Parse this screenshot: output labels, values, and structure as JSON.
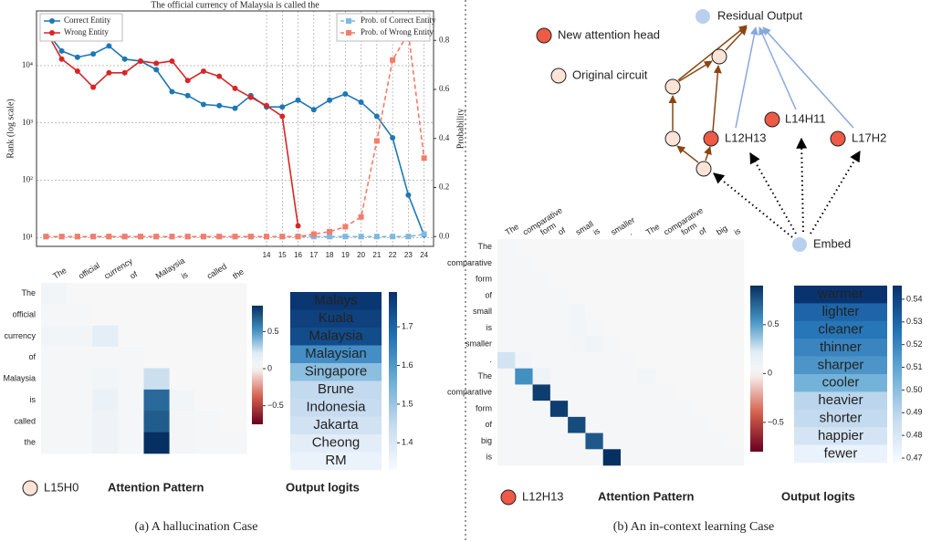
{
  "chart_data": [
    {
      "type": "line",
      "title": "The official currency of Malaysia is called the",
      "ylabel": "Rank (log scale)",
      "y2label": "Probability",
      "x": [
        0,
        1,
        2,
        3,
        4,
        5,
        6,
        7,
        8,
        9,
        10,
        11,
        12,
        13,
        14,
        15,
        16,
        17,
        18,
        19,
        20,
        21,
        22,
        23,
        24
      ],
      "xlim": [
        -0.6,
        24.6
      ],
      "xticks": [
        14,
        15,
        16,
        17,
        18,
        19,
        20,
        21,
        22,
        23,
        24
      ],
      "yscale": "log",
      "ylim": [
        7,
        90000
      ],
      "yticks": [
        {
          "value": 10,
          "label": "10¹"
        },
        {
          "value": 100,
          "label": "10²"
        },
        {
          "value": 1000,
          "label": "10³"
        },
        {
          "value": 10000,
          "label": "10⁴"
        }
      ],
      "y2lim": [
        -0.04,
        0.92
      ],
      "y2ticks": [
        {
          "value": 0,
          "label": "0.0"
        },
        {
          "value": 0.2,
          "label": "0.2"
        },
        {
          "value": 0.4,
          "label": "0.4"
        },
        {
          "value": 0.6,
          "label": "0.6"
        },
        {
          "value": 0.8,
          "label": "0.8"
        }
      ],
      "grid": true,
      "legend": "upper left",
      "legend2": "upper right",
      "series": [
        {
          "name": "Correct Entity",
          "color": "#1f77b4",
          "marker": "circle",
          "linestyle": "solid",
          "values": [
            40000,
            18000,
            14000,
            16000,
            22000,
            13000,
            12000,
            8500,
            3500,
            3000,
            2100,
            2000,
            1800,
            3000,
            1900,
            1900,
            2500,
            1700,
            2500,
            3200,
            2300,
            1300,
            550,
            55,
            11
          ]
        },
        {
          "name": "Wrong Entity",
          "color": "#d62728",
          "marker": "circle",
          "linestyle": "solid",
          "values": [
            40000,
            13000,
            8000,
            4200,
            7500,
            7500,
            12000,
            11000,
            12000,
            5500,
            8000,
            6500,
            4000,
            2800,
            2000,
            1300,
            16,
            null,
            null,
            null,
            null,
            null,
            null,
            null,
            null
          ]
        },
        {
          "name": "Prob. of Correct Entity",
          "color": "#7fb8e0",
          "marker": "square",
          "linestyle": "dashed",
          "axis": "y2",
          "values": [
            0,
            0,
            0,
            0,
            0,
            0,
            0,
            0,
            0,
            0,
            0,
            0,
            0,
            0,
            0,
            0,
            0,
            0,
            0,
            0,
            0,
            0,
            0,
            0,
            0.01
          ]
        },
        {
          "name": "Prob. of Wrong Entity",
          "color": "#f47c6a",
          "marker": "square",
          "linestyle": "dashed",
          "axis": "y2",
          "values": [
            0,
            0,
            0,
            0,
            0,
            0,
            0,
            0,
            0,
            0,
            0,
            0,
            0,
            0,
            0,
            0,
            0,
            0.01,
            0.02,
            0.04,
            0.08,
            0.39,
            0.72,
            0.83,
            0.32
          ]
        }
      ]
    },
    {
      "type": "heatmap",
      "colormap": "RdBu",
      "xlabels": [
        "The",
        "official",
        "currency",
        "of",
        "Malaysia",
        "is",
        "called",
        "the"
      ],
      "ylabels": [
        "The",
        "official",
        "currency",
        "of",
        "Malaysia",
        "is",
        "called",
        "the"
      ],
      "clim": [
        -0.75,
        0.85
      ],
      "cticks": [
        0.5,
        0,
        {
          "value": -0.5,
          "label": "−0.5"
        }
      ],
      "values": [
        [
          0.05,
          0,
          0,
          0,
          0,
          0,
          0,
          0
        ],
        [
          0.03,
          0.02,
          0,
          0,
          0,
          0,
          0,
          0
        ],
        [
          0.05,
          0.05,
          0.2,
          0,
          0,
          0,
          0,
          0
        ],
        [
          0.02,
          0.02,
          0.03,
          0.02,
          0,
          0,
          0,
          0
        ],
        [
          0.02,
          0.02,
          0.05,
          0.03,
          0.25,
          0,
          0,
          0
        ],
        [
          0.03,
          0.03,
          0.12,
          0.03,
          0.65,
          0.05,
          0,
          0
        ],
        [
          0.03,
          0.03,
          0.08,
          0.02,
          0.7,
          0.04,
          0.03,
          0
        ],
        [
          0.03,
          0.03,
          0.08,
          0.03,
          0.85,
          0.04,
          0.03,
          0.03
        ]
      ]
    },
    {
      "type": "colortable",
      "colormap": "Blues",
      "categories": [
        "Malays",
        "Kuala",
        "Malaysia",
        "Malaysian",
        "Singapore",
        "Brune",
        "Indonesia",
        "Jakarta",
        "Cheong",
        "RM"
      ],
      "values": [
        1.78,
        1.76,
        1.74,
        1.62,
        1.52,
        1.45,
        1.44,
        1.42,
        1.38,
        1.36
      ],
      "clim": [
        1.33,
        1.79
      ],
      "cticks": [
        1.4,
        1.5,
        1.6,
        1.7
      ]
    },
    {
      "type": "heatmap",
      "colormap": "RdBu",
      "xlabels": [
        "The",
        "comparative",
        "form",
        "of",
        "small",
        "is",
        "smaller",
        ".",
        "The",
        "comparative",
        "form",
        "of",
        "big",
        "is"
      ],
      "ylabels": [
        "The",
        "comparative",
        "form",
        "of",
        "small",
        "is",
        "smaller",
        ".",
        "The",
        "comparative",
        "form",
        "of",
        "big",
        "is"
      ],
      "clim": [
        -0.8,
        0.9
      ],
      "cticks": [
        0.5,
        0,
        {
          "value": -0.5,
          "label": "−0.5"
        }
      ],
      "values": [
        [
          0.03,
          0,
          0,
          0,
          0,
          0,
          0,
          0,
          0,
          0,
          0,
          0,
          0,
          0
        ],
        [
          0.02,
          0.03,
          0,
          0,
          0,
          0,
          0,
          0,
          0,
          0,
          0,
          0,
          0,
          0
        ],
        [
          0.02,
          0.02,
          0.02,
          0,
          0,
          0,
          0,
          0,
          0,
          0,
          0,
          0,
          0,
          0
        ],
        [
          0.02,
          0.02,
          0.02,
          0.02,
          0,
          0,
          0,
          0,
          0,
          0,
          0,
          0,
          0,
          0
        ],
        [
          0.02,
          0.03,
          0.02,
          0.02,
          0.05,
          0,
          0,
          0,
          0,
          0,
          0,
          0,
          0,
          0
        ],
        [
          0.02,
          0.02,
          0.02,
          0.03,
          0.05,
          0.03,
          0,
          0,
          0,
          0,
          0,
          0,
          0,
          0
        ],
        [
          0.02,
          0.02,
          0.02,
          0.02,
          0.04,
          0.08,
          0.03,
          0,
          0,
          0,
          0,
          0,
          0,
          0
        ],
        [
          0.25,
          0.05,
          0.02,
          0.02,
          0.02,
          0.02,
          0.03,
          0.02,
          0,
          0,
          0,
          0,
          0,
          0
        ],
        [
          0.02,
          0.55,
          0.1,
          0.02,
          0.02,
          0.02,
          0.02,
          0.02,
          0.05,
          0,
          0,
          0,
          0,
          0
        ],
        [
          0.02,
          0.02,
          0.85,
          0.02,
          0.02,
          0.02,
          0.02,
          0.02,
          0.02,
          0.02,
          0,
          0,
          0,
          0
        ],
        [
          0.02,
          0.02,
          0.02,
          0.85,
          0.02,
          0.02,
          0.02,
          0.02,
          0.02,
          0.02,
          0.02,
          0,
          0,
          0
        ],
        [
          0.02,
          0.02,
          0.02,
          0.02,
          0.8,
          0.02,
          0.02,
          0.02,
          0.02,
          0.02,
          0.02,
          0.02,
          0,
          0
        ],
        [
          0.02,
          0.02,
          0.02,
          0.02,
          0.02,
          0.75,
          0.02,
          0.02,
          0.02,
          0.02,
          0.02,
          0.02,
          0.02,
          0
        ],
        [
          0.02,
          0.02,
          0.02,
          0.02,
          0.02,
          0.02,
          0.9,
          0.02,
          0.02,
          0.02,
          0.02,
          0.02,
          0.02,
          0.02
        ]
      ]
    },
    {
      "type": "colortable",
      "colormap": "Blues",
      "categories": [
        "warmer",
        "lighter",
        "cleaner",
        "thinner",
        "sharper",
        "cooler",
        "heavier",
        "shorter",
        "happier",
        "fewer"
      ],
      "values": [
        0.545,
        0.53,
        0.525,
        0.52,
        0.515,
        0.505,
        0.49,
        0.488,
        0.482,
        0.473
      ],
      "clim": [
        0.468,
        0.546
      ],
      "cticks": [
        0.47,
        0.48,
        0.49,
        {
          "value": 0.5,
          "label": "0.50"
        },
        0.51,
        0.52,
        0.53,
        0.54
      ]
    }
  ],
  "diagram": {
    "residual": "Residual Output",
    "legend_new": "New attention head",
    "legend_original": "Original circuit",
    "heads": [
      "L12H13",
      "L14H11",
      "L17H2"
    ],
    "embed": "Embed"
  },
  "panels": [
    {
      "head": "L15H0",
      "attention": "Attention Pattern",
      "logits": "Output logits",
      "caption": "(a)  A hallucination Case"
    },
    {
      "head": "L12H13",
      "attention": "Attention Pattern",
      "logits": "Output logits",
      "caption": "(b)  An in-context learning Case"
    }
  ]
}
